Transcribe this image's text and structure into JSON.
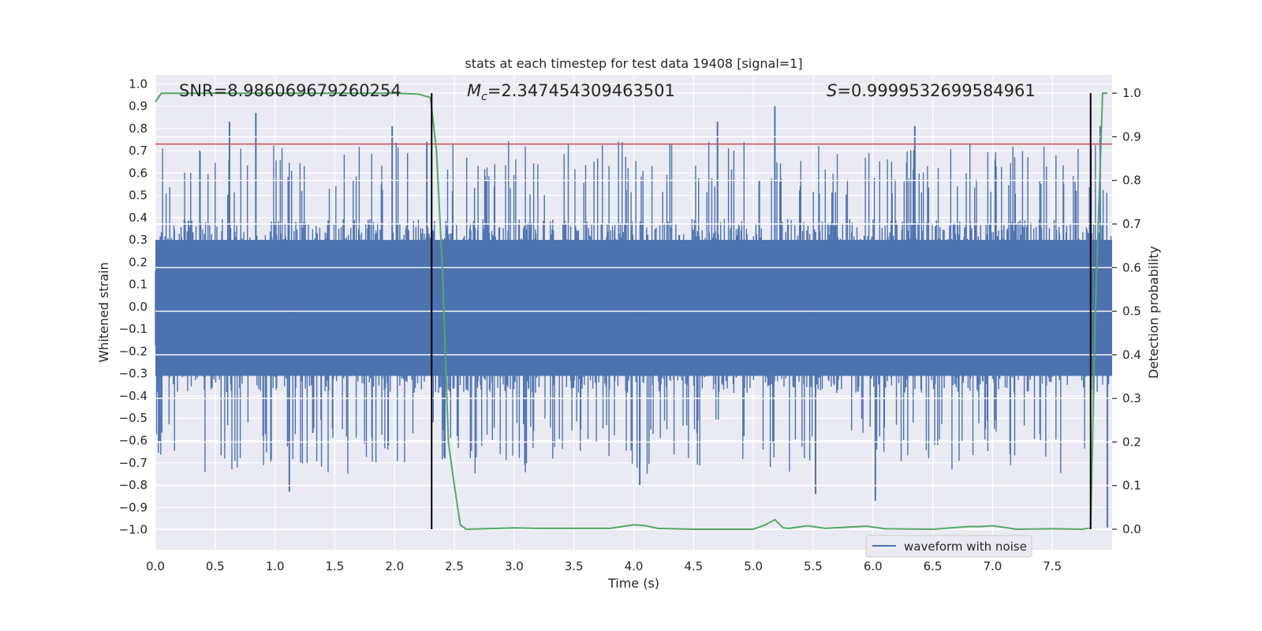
{
  "chart_data": {
    "type": "line",
    "title": "stats at each timestep for test data 19408 [signal=1]",
    "xlabel": "Time (s)",
    "ylabel": "Whitened strain",
    "ylabel_right": "Detection probability",
    "xlim": [
      0.0,
      8.0
    ],
    "ylim": [
      -1.09,
      1.04
    ],
    "ylim_right": [
      -0.0471,
      1.0419
    ],
    "x_ticks": [
      0.0,
      0.5,
      1.0,
      1.5,
      2.0,
      2.5,
      3.0,
      3.5,
      4.0,
      4.5,
      5.0,
      5.5,
      6.0,
      6.5,
      7.0,
      7.5
    ],
    "x_tick_labels": [
      "0.0",
      "0.5",
      "1.0",
      "1.5",
      "2.0",
      "2.5",
      "3.0",
      "3.5",
      "4.0",
      "4.5",
      "5.0",
      "5.5",
      "6.0",
      "6.5",
      "7.0",
      "7.5"
    ],
    "y_ticks": [
      1.0,
      0.9,
      0.8,
      0.7,
      0.6,
      0.5,
      0.4,
      0.3,
      0.2,
      0.1,
      0.0,
      -0.1,
      -0.2,
      -0.3,
      -0.4,
      -0.5,
      -0.6,
      -0.7,
      -0.8,
      -0.9,
      -1.0
    ],
    "y_tick_labels": [
      "1.0",
      "0.9",
      "0.8",
      "0.7",
      "0.6",
      "0.5",
      "0.4",
      "0.3",
      "0.2",
      "0.1",
      "0.0",
      "−0.1",
      "−0.2",
      "−0.3",
      "−0.4",
      "−0.5",
      "−0.6",
      "−0.7",
      "−0.8",
      "−0.9",
      "−1.0"
    ],
    "y_ticks_right": [
      1.0,
      0.9,
      0.8,
      0.7,
      0.6,
      0.5,
      0.4,
      0.3,
      0.2,
      0.1,
      0.0
    ],
    "y_tick_labels_right": [
      "1.0",
      "0.9",
      "0.8",
      "0.7",
      "0.6",
      "0.5",
      "0.4",
      "0.3",
      "0.2",
      "0.1",
      "0.0"
    ],
    "annotations": {
      "snr": "SNR=8.986069679260254",
      "mc_symbol": "M",
      "mc_sub": "c",
      "mc_value": "=2.347454309463501",
      "s_symbol": "S",
      "s_value": "=0.9999532699584961"
    },
    "threshold_line": {
      "y": 0.73,
      "color": "#c44e52"
    },
    "event_lines": {
      "x": [
        2.31,
        7.82
      ],
      "color": "#000000"
    },
    "waveform": {
      "name": "waveform with noise",
      "color": "#4c72b0",
      "samples": 1600,
      "envelope_bounds": [
        -0.42,
        0.43
      ],
      "peaks": [
        {
          "x": 0.62,
          "y": 0.83
        },
        {
          "x": 0.84,
          "y": 0.87
        },
        {
          "x": 1.12,
          "y": -0.83
        },
        {
          "x": 1.98,
          "y": 0.81
        },
        {
          "x": 2.27,
          "y": 0.74
        },
        {
          "x": 2.42,
          "y": -0.68
        },
        {
          "x": 4.05,
          "y": -0.8
        },
        {
          "x": 4.7,
          "y": 0.83
        },
        {
          "x": 5.18,
          "y": 0.9
        },
        {
          "x": 5.52,
          "y": -0.84
        },
        {
          "x": 6.02,
          "y": -0.87
        },
        {
          "x": 6.35,
          "y": 0.81
        },
        {
          "x": 7.9,
          "y": 0.81
        },
        {
          "x": 7.96,
          "y": -0.99
        }
      ]
    },
    "probability": {
      "name": "detection probability",
      "color": "#55a868",
      "x": [
        0.0,
        0.05,
        0.1,
        0.5,
        1.0,
        1.5,
        2.0,
        2.2,
        2.3,
        2.35,
        2.4,
        2.45,
        2.5,
        2.55,
        2.6,
        3.0,
        3.2,
        3.5,
        3.8,
        4.0,
        4.1,
        4.2,
        4.5,
        5.0,
        5.1,
        5.18,
        5.25,
        5.3,
        5.45,
        5.6,
        5.8,
        5.95,
        6.1,
        6.5,
        6.8,
        6.9,
        7.0,
        7.2,
        7.5,
        7.75,
        7.82,
        7.86,
        7.92,
        7.96
      ],
      "y": [
        0.98,
        1.0,
        1.0,
        1.0,
        1.0,
        1.0,
        1.0,
        0.998,
        0.99,
        0.87,
        0.6,
        0.2,
        0.1,
        0.01,
        0.0,
        0.003,
        0.002,
        0.002,
        0.002,
        0.01,
        0.008,
        0.002,
        0.0,
        0.0,
        0.01,
        0.022,
        0.003,
        0.002,
        0.008,
        0.002,
        0.005,
        0.007,
        0.001,
        0.0,
        0.006,
        0.006,
        0.008,
        0.0,
        0.001,
        0.0,
        0.003,
        0.5,
        1.0,
        1.0
      ]
    },
    "legend": {
      "entries": [
        "waveform with noise"
      ],
      "position": "lower-right"
    },
    "grid": true
  }
}
